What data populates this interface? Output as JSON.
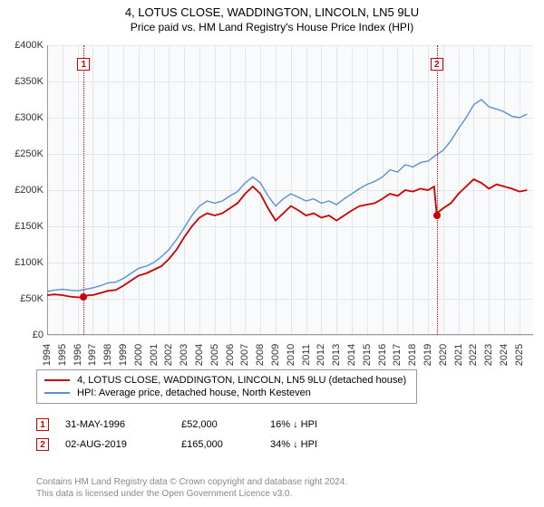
{
  "title": "4, LOTUS CLOSE, WADDINGTON, LINCOLN, LN5 9LU",
  "subtitle": "Price paid vs. HM Land Registry's House Price Index (HPI)",
  "chart": {
    "type": "line",
    "background_color": "#ffffff",
    "plot_bg_color": "#f9fafb",
    "grid_color": "#e6e6e6",
    "axis_color": "#999999",
    "x_start": 1994,
    "x_end": 2025.9,
    "x_ticks": [
      1994,
      1995,
      1996,
      1997,
      1998,
      1999,
      2000,
      2001,
      2002,
      2003,
      2004,
      2005,
      2006,
      2007,
      2008,
      2009,
      2010,
      2011,
      2012,
      2013,
      2014,
      2015,
      2016,
      2017,
      2018,
      2019,
      2020,
      2021,
      2022,
      2023,
      2024,
      2025
    ],
    "y_min": 0,
    "y_max": 400000,
    "y_ticks": [
      0,
      50000,
      100000,
      150000,
      200000,
      250000,
      300000,
      350000,
      400000
    ],
    "y_tick_labels": [
      "£0",
      "£50K",
      "£100K",
      "£150K",
      "£200K",
      "£250K",
      "£300K",
      "£350K",
      "£400K"
    ],
    "series": [
      {
        "name": "4, LOTUS CLOSE, WADDINGTON, LINCOLN, LN5 9LU (detached house)",
        "color": "#cc0000",
        "width": 1.8,
        "points": [
          [
            1994,
            55000
          ],
          [
            1994.5,
            56000
          ],
          [
            1995,
            55000
          ],
          [
            1995.5,
            53000
          ],
          [
            1996,
            52000
          ],
          [
            1996.4,
            52000
          ],
          [
            1996.7,
            55000
          ],
          [
            1997,
            55000
          ],
          [
            1997.5,
            58000
          ],
          [
            1998,
            61000
          ],
          [
            1998.5,
            62000
          ],
          [
            1999,
            68000
          ],
          [
            1999.5,
            75000
          ],
          [
            2000,
            82000
          ],
          [
            2000.5,
            85000
          ],
          [
            2001,
            90000
          ],
          [
            2001.5,
            95000
          ],
          [
            2002,
            105000
          ],
          [
            2002.5,
            118000
          ],
          [
            2003,
            135000
          ],
          [
            2003.5,
            150000
          ],
          [
            2004,
            162000
          ],
          [
            2004.5,
            168000
          ],
          [
            2005,
            165000
          ],
          [
            2005.5,
            168000
          ],
          [
            2006,
            175000
          ],
          [
            2006.5,
            182000
          ],
          [
            2007,
            195000
          ],
          [
            2007.5,
            205000
          ],
          [
            2008,
            195000
          ],
          [
            2008.5,
            175000
          ],
          [
            2009,
            158000
          ],
          [
            2009.5,
            168000
          ],
          [
            2010,
            178000
          ],
          [
            2010.5,
            172000
          ],
          [
            2011,
            165000
          ],
          [
            2011.5,
            168000
          ],
          [
            2012,
            162000
          ],
          [
            2012.5,
            165000
          ],
          [
            2013,
            158000
          ],
          [
            2013.5,
            165000
          ],
          [
            2014,
            172000
          ],
          [
            2014.5,
            178000
          ],
          [
            2015,
            180000
          ],
          [
            2015.5,
            182000
          ],
          [
            2016,
            188000
          ],
          [
            2016.5,
            195000
          ],
          [
            2017,
            192000
          ],
          [
            2017.5,
            200000
          ],
          [
            2018,
            198000
          ],
          [
            2018.5,
            202000
          ],
          [
            2019,
            200000
          ],
          [
            2019.4,
            205000
          ],
          [
            2019.58,
            165000
          ],
          [
            2019.7,
            170000
          ],
          [
            2020,
            175000
          ],
          [
            2020.5,
            182000
          ],
          [
            2021,
            195000
          ],
          [
            2021.5,
            205000
          ],
          [
            2022,
            215000
          ],
          [
            2022.5,
            210000
          ],
          [
            2023,
            202000
          ],
          [
            2023.5,
            208000
          ],
          [
            2024,
            205000
          ],
          [
            2024.5,
            202000
          ],
          [
            2025,
            198000
          ],
          [
            2025.5,
            200000
          ]
        ]
      },
      {
        "name": "HPI: Average price, detached house, North Kesteven",
        "color": "#5b8fd6",
        "width": 1.4,
        "points": [
          [
            1994,
            60000
          ],
          [
            1994.5,
            62000
          ],
          [
            1995,
            63000
          ],
          [
            1995.5,
            62000
          ],
          [
            1996,
            61000
          ],
          [
            1996.5,
            63000
          ],
          [
            1997,
            65000
          ],
          [
            1997.5,
            68000
          ],
          [
            1998,
            72000
          ],
          [
            1998.5,
            73000
          ],
          [
            1999,
            78000
          ],
          [
            1999.5,
            85000
          ],
          [
            2000,
            92000
          ],
          [
            2000.5,
            95000
          ],
          [
            2001,
            100000
          ],
          [
            2001.5,
            108000
          ],
          [
            2002,
            118000
          ],
          [
            2002.5,
            132000
          ],
          [
            2003,
            148000
          ],
          [
            2003.5,
            165000
          ],
          [
            2004,
            178000
          ],
          [
            2004.5,
            185000
          ],
          [
            2005,
            182000
          ],
          [
            2005.5,
            185000
          ],
          [
            2006,
            192000
          ],
          [
            2006.5,
            198000
          ],
          [
            2007,
            210000
          ],
          [
            2007.5,
            218000
          ],
          [
            2008,
            210000
          ],
          [
            2008.5,
            192000
          ],
          [
            2009,
            178000
          ],
          [
            2009.5,
            188000
          ],
          [
            2010,
            195000
          ],
          [
            2010.5,
            190000
          ],
          [
            2011,
            185000
          ],
          [
            2011.5,
            188000
          ],
          [
            2012,
            182000
          ],
          [
            2012.5,
            185000
          ],
          [
            2013,
            180000
          ],
          [
            2013.5,
            188000
          ],
          [
            2014,
            195000
          ],
          [
            2014.5,
            202000
          ],
          [
            2015,
            208000
          ],
          [
            2015.5,
            212000
          ],
          [
            2016,
            218000
          ],
          [
            2016.5,
            228000
          ],
          [
            2017,
            225000
          ],
          [
            2017.5,
            235000
          ],
          [
            2018,
            232000
          ],
          [
            2018.5,
            238000
          ],
          [
            2019,
            240000
          ],
          [
            2019.5,
            248000
          ],
          [
            2020,
            255000
          ],
          [
            2020.5,
            268000
          ],
          [
            2021,
            285000
          ],
          [
            2021.5,
            300000
          ],
          [
            2022,
            318000
          ],
          [
            2022.5,
            325000
          ],
          [
            2023,
            315000
          ],
          [
            2023.5,
            312000
          ],
          [
            2024,
            308000
          ],
          [
            2024.5,
            302000
          ],
          [
            2025,
            300000
          ],
          [
            2025.5,
            305000
          ]
        ]
      }
    ],
    "markers": [
      {
        "n": "1",
        "x": 1996.4,
        "y": 52000
      },
      {
        "n": "2",
        "x": 2019.58,
        "y": 165000
      }
    ]
  },
  "legend": {
    "items": [
      {
        "color": "#cc0000",
        "label": "4, LOTUS CLOSE, WADDINGTON, LINCOLN, LN5 9LU (detached house)"
      },
      {
        "color": "#5b8fd6",
        "label": "HPI: Average price, detached house, North Kesteven"
      }
    ]
  },
  "transactions": [
    {
      "n": "1",
      "date": "31-MAY-1996",
      "price": "£52,000",
      "pct": "16% ↓ HPI"
    },
    {
      "n": "2",
      "date": "02-AUG-2019",
      "price": "£165,000",
      "pct": "34% ↓ HPI"
    }
  ],
  "footer_line1": "Contains HM Land Registry data © Crown copyright and database right 2024.",
  "footer_line2": "This data is licensed under the Open Government Licence v3.0."
}
